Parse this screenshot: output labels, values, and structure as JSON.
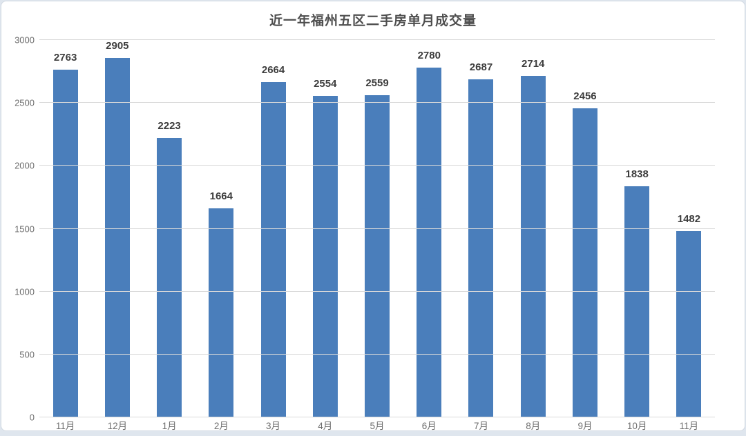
{
  "chart_data": {
    "type": "bar",
    "title": "近一年福州五区二手房单月成交量",
    "categories": [
      "11月",
      "12月",
      "1月",
      "2月",
      "3月",
      "4月",
      "5月",
      "6月",
      "7月",
      "8月",
      "9月",
      "10月",
      "11月"
    ],
    "values": [
      2763,
      2905,
      2223,
      1664,
      2664,
      2554,
      2559,
      2780,
      2687,
      2714,
      2456,
      1838,
      1482
    ],
    "xlabel": "",
    "ylabel": "",
    "ylim": [
      0,
      3000
    ],
    "yticks": [
      0,
      500,
      1000,
      1500,
      2000,
      2500,
      3000
    ],
    "grid": true,
    "legend": "none",
    "bar_color": "#4a7ebb",
    "value_label_color": "#3d3d3d",
    "tick_label_color": "#6e6e6e",
    "gridline_color": "#d9d9d9",
    "card_background": "#ffffff",
    "page_background": "#dfe6ee"
  }
}
